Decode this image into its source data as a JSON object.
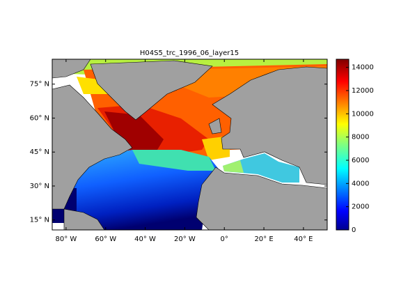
{
  "map": {
    "title": "H04S5_trc_1996_06_layer15",
    "xlim": [
      -87,
      52
    ],
    "ylim": [
      10.6,
      86
    ],
    "xticks": [
      {
        "value": -80,
        "label": "80° W"
      },
      {
        "value": -60,
        "label": "60° W"
      },
      {
        "value": -40,
        "label": "40° W"
      },
      {
        "value": -20,
        "label": "20° W"
      },
      {
        "value": 0,
        "label": "0°"
      },
      {
        "value": 20,
        "label": "20° E"
      },
      {
        "value": 40,
        "label": "40° E"
      }
    ],
    "yticks": [
      {
        "value": 15,
        "label": "15° N"
      },
      {
        "value": 30,
        "label": "30° N"
      },
      {
        "value": 45,
        "label": "45° N"
      },
      {
        "value": 60,
        "label": "60° N"
      },
      {
        "value": 75,
        "label": "75° N"
      }
    ],
    "colorbar": {
      "lim": [
        0,
        14700
      ],
      "ticks": [
        0,
        2000,
        4000,
        6000,
        8000,
        10000,
        12000,
        14000
      ]
    }
  }
}
